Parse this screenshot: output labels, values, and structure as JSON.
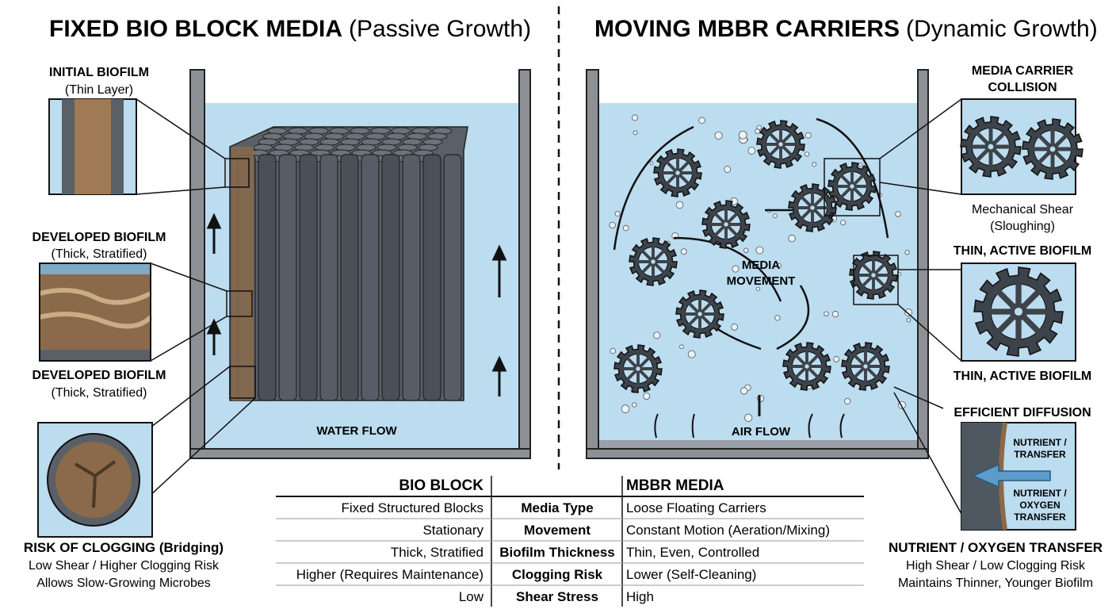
{
  "left": {
    "title_bold": "FIXED BIO BLOCK MEDIA",
    "title_light": "(Passive Growth)",
    "initial_biofilm": {
      "title": "INITIAL BIOFILM",
      "sub": "(Thin Layer)"
    },
    "developed_biofilm_1": {
      "title": "DEVELOPED BIOFILM",
      "sub": "(Thick, Stratified)"
    },
    "developed_biofilm_2": {
      "title": "DEVELOPED BIOFILM",
      "sub": "(Thick, Stratified)"
    },
    "clogging": {
      "title": "RISK OF CLOGGING (Bridging)",
      "line1": "Low Shear / Higher Clogging Risk",
      "line2": "Allows Slow-Growing Microbes"
    },
    "water_flow": "WATER FLOW"
  },
  "right": {
    "title_bold": "MOVING MBBR CARRIERS",
    "title_light": "(Dynamic Growth)",
    "collision": {
      "title1": "MEDIA CARRIER",
      "title2": "COLLISION",
      "sub1": "Mechanical Shear",
      "sub2": "(Sloughing)"
    },
    "thin_biofilm_1": "THIN, ACTIVE BIOFILM",
    "thin_biofilm_2": "THIN, ACTIVE BIOFILM",
    "diffusion": {
      "title": "EFFICIENT DIFFUSION",
      "inset1a": "NUTRIENT /",
      "inset1b": "TRANSFER",
      "inset2a": "NUTRIENT /",
      "inset2b": "OXYGEN",
      "inset2c": "TRANSFER"
    },
    "transfer": {
      "title": "NUTRIENT / OXYGEN TRANSFER",
      "line1": "High Shear / Low Clogging Risk",
      "line2": "Maintains Thinner, Younger Biofilm"
    },
    "media_movement_1": "MEDIA",
    "media_movement_2": "MOVEMENT",
    "air_flow": "AIR FLOW"
  },
  "table": {
    "headers": {
      "left": "BIO BLOCK",
      "right": "MBBR MEDIA"
    },
    "rows": [
      {
        "left": "Fixed Structured Blocks",
        "label": "Media Type",
        "right": "Loose Floating Carriers"
      },
      {
        "left": "Stationary",
        "label": "Movement",
        "right": "Constant Motion (Aeration/Mixing)"
      },
      {
        "left": "Thick, Stratified",
        "label": "Biofilm Thickness",
        "right": "Thin, Even, Controlled"
      },
      {
        "left": "Higher (Requires Maintenance)",
        "label": "Clogging Risk",
        "right": "Lower (Self-Cleaning)"
      },
      {
        "left": "Low",
        "label": "Shear Stress",
        "right": "High"
      }
    ]
  },
  "colors": {
    "water": "#bcdcef",
    "tank": "#8d9196",
    "media": "#3d434a",
    "biofilm": "#8a6a4a",
    "arrow": "#5c9ccc"
  }
}
